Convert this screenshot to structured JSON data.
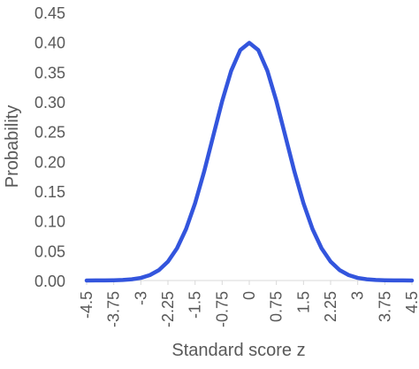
{
  "chart_data": {
    "type": "line",
    "xlabel": "Standard score z",
    "ylabel": "Probability",
    "ylim": [
      0,
      0.45
    ],
    "y_ticks": [
      "0.00",
      "0.05",
      "0.10",
      "0.15",
      "0.20",
      "0.25",
      "0.30",
      "0.35",
      "0.40",
      "0.45"
    ],
    "x_tick_labels": [
      "-4.5",
      "-3.75",
      "-3",
      "-2.25",
      "-1.5",
      "-0.75",
      "0",
      "0.75",
      "1.5",
      "2.25",
      "3",
      "3.75",
      "4.5"
    ],
    "x_tick_values": [
      -4.5,
      -3.75,
      -3,
      -2.25,
      -1.5,
      -0.75,
      0,
      0.75,
      1.5,
      2.25,
      3,
      3.75,
      4.5
    ],
    "xlim": [
      -4.5,
      4.5
    ],
    "grid": false,
    "series": [
      {
        "color": "#3355dd",
        "x": [
          -4.5,
          -4.25,
          -4.0,
          -3.75,
          -3.5,
          -3.25,
          -3.0,
          -2.75,
          -2.5,
          -2.25,
          -2.0,
          -1.75,
          -1.5,
          -1.25,
          -1.0,
          -0.75,
          -0.5,
          -0.25,
          0,
          0.25,
          0.5,
          0.75,
          1.0,
          1.25,
          1.5,
          1.75,
          2.0,
          2.25,
          2.5,
          2.75,
          3.0,
          3.25,
          3.5,
          3.75,
          4.0,
          4.25,
          4.5
        ],
        "values": [
          0.0,
          0.0001,
          0.0001,
          0.0004,
          0.0009,
          0.002,
          0.0044,
          0.0091,
          0.0175,
          0.0317,
          0.054,
          0.0863,
          0.1295,
          0.1826,
          0.242,
          0.3011,
          0.3521,
          0.3867,
          0.3989,
          0.3867,
          0.3521,
          0.3011,
          0.242,
          0.1826,
          0.1295,
          0.0863,
          0.054,
          0.0317,
          0.0175,
          0.0091,
          0.0044,
          0.002,
          0.0009,
          0.0004,
          0.0001,
          0.0001,
          0.0
        ]
      }
    ]
  }
}
